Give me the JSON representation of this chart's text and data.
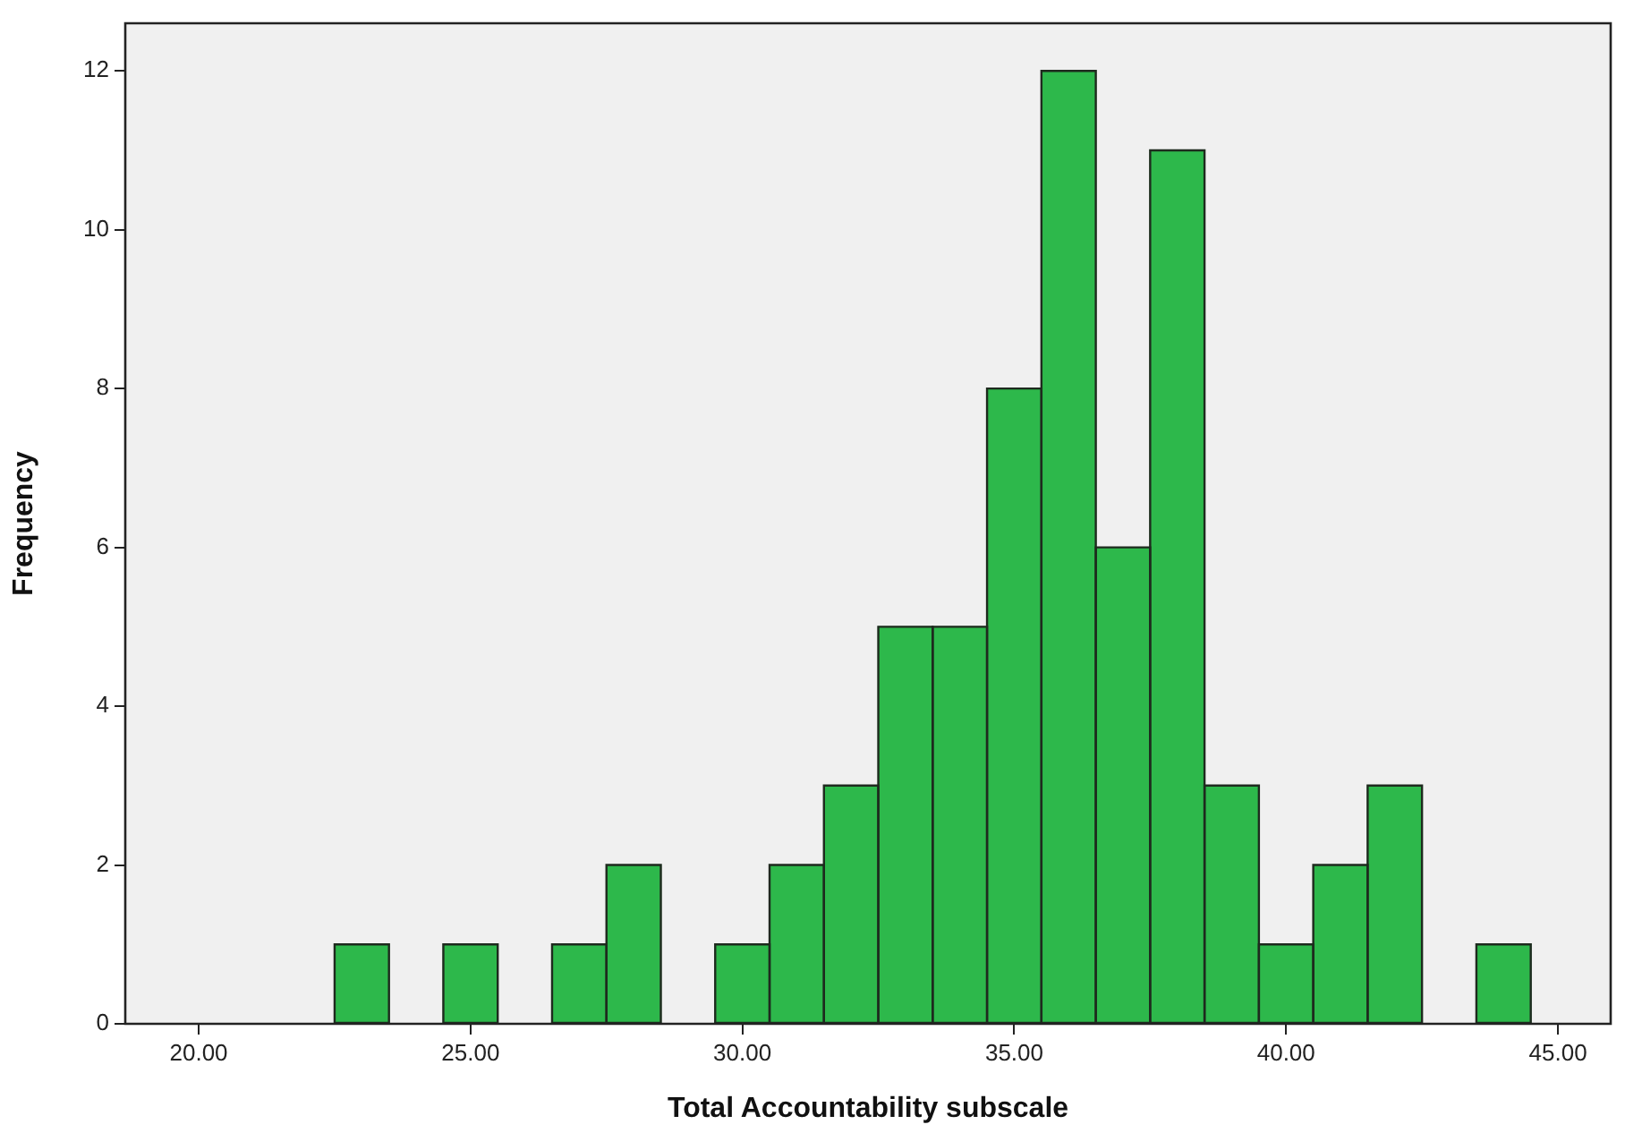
{
  "chart_data": {
    "type": "histogram",
    "xlabel": "Total Accountability subscale",
    "ylabel": "Frequency",
    "bins": [
      22.5,
      23.5,
      24.5,
      25.5,
      26.5,
      27.5,
      28.5,
      29.5,
      30.5,
      31.5,
      32.5,
      33.5,
      34.5,
      35.5,
      36.5,
      37.5,
      38.5,
      39.5,
      40.5,
      41.5,
      42.5,
      43.5,
      44.5
    ],
    "values": [
      1,
      0,
      1,
      0,
      1,
      2,
      0,
      1,
      2,
      3,
      5,
      5,
      8,
      12,
      6,
      11,
      3,
      1,
      2,
      3,
      0,
      1
    ],
    "color": "#2db84b",
    "xlim": [
      18.65,
      45.97
    ],
    "xticks": [
      {
        "value": 20,
        "label": "20.00"
      },
      {
        "value": 25,
        "label": "25.00"
      },
      {
        "value": 30,
        "label": "30.00"
      },
      {
        "value": 35,
        "label": "35.00"
      },
      {
        "value": 40,
        "label": "40.00"
      },
      {
        "value": 45,
        "label": "45.00"
      }
    ],
    "ylim": [
      0,
      12.6
    ],
    "yticks": [
      0,
      2,
      4,
      6,
      8,
      10,
      12
    ],
    "grid": false,
    "legend": false
  }
}
